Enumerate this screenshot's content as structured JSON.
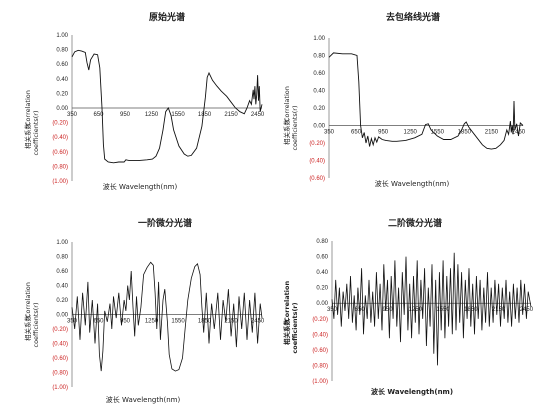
{
  "colors": {
    "positive_tick": "#222222",
    "negative_tick": "#cc2222",
    "line": "#111111",
    "axis": "#555555"
  },
  "chart_data": [
    {
      "type": "line",
      "title": "原始光谱",
      "xlabel": "波长 Wavelength(nm)",
      "ylabel_cn": "相关系数",
      "ylabel_en_1": "Correlation",
      "ylabel_en_2": "coefficients(r)",
      "ylim": [
        -1.0,
        1.0
      ],
      "yticks": [
        "1.00",
        "0.80",
        "0.60",
        "0.40",
        "0.20",
        "0.00",
        "(0.20)",
        "(0.40)",
        "(0.60)",
        "(0.80)",
        "(1.00)"
      ],
      "ytick_values": [
        1.0,
        0.8,
        0.6,
        0.4,
        0.2,
        0.0,
        -0.2,
        -0.4,
        -0.6,
        -0.8,
        -1.0
      ],
      "xlim": [
        350,
        2500
      ],
      "xticks": [
        "350",
        "650",
        "950",
        "1250",
        "1550",
        "1850",
        "2150",
        "2450"
      ],
      "xtick_values": [
        350,
        650,
        950,
        1250,
        1550,
        1850,
        2150,
        2450
      ],
      "points": [
        [
          350,
          0.7
        ],
        [
          380,
          0.77
        ],
        [
          420,
          0.79
        ],
        [
          460,
          0.78
        ],
        [
          500,
          0.76
        ],
        [
          520,
          0.62
        ],
        [
          540,
          0.52
        ],
        [
          560,
          0.66
        ],
        [
          600,
          0.74
        ],
        [
          640,
          0.73
        ],
        [
          665,
          0.55
        ],
        [
          690,
          0.0
        ],
        [
          705,
          -0.5
        ],
        [
          720,
          -0.7
        ],
        [
          760,
          -0.74
        ],
        [
          820,
          -0.75
        ],
        [
          880,
          -0.74
        ],
        [
          940,
          -0.74
        ],
        [
          960,
          -0.71
        ],
        [
          1000,
          -0.72
        ],
        [
          1100,
          -0.72
        ],
        [
          1200,
          -0.71
        ],
        [
          1260,
          -0.7
        ],
        [
          1300,
          -0.66
        ],
        [
          1340,
          -0.55
        ],
        [
          1380,
          -0.3
        ],
        [
          1410,
          -0.05
        ],
        [
          1440,
          0.0
        ],
        [
          1470,
          -0.1
        ],
        [
          1500,
          -0.3
        ],
        [
          1560,
          -0.52
        ],
        [
          1620,
          -0.63
        ],
        [
          1660,
          -0.66
        ],
        [
          1700,
          -0.65
        ],
        [
          1760,
          -0.55
        ],
        [
          1820,
          -0.25
        ],
        [
          1860,
          0.15
        ],
        [
          1880,
          0.42
        ],
        [
          1900,
          0.48
        ],
        [
          1940,
          0.38
        ],
        [
          1990,
          0.3
        ],
        [
          2040,
          0.23
        ],
        [
          2100,
          0.16
        ],
        [
          2150,
          0.08
        ],
        [
          2200,
          0.0
        ],
        [
          2250,
          -0.05
        ],
        [
          2300,
          -0.08
        ],
        [
          2330,
          0.0
        ],
        [
          2360,
          0.1
        ],
        [
          2380,
          0.05
        ],
        [
          2400,
          0.25
        ],
        [
          2410,
          0.12
        ],
        [
          2420,
          0.3
        ],
        [
          2430,
          0.05
        ],
        [
          2440,
          0.18
        ],
        [
          2450,
          0.45
        ],
        [
          2460,
          0.1
        ],
        [
          2470,
          0.3
        ],
        [
          2480,
          -0.05
        ],
        [
          2500,
          0.05
        ]
      ]
    },
    {
      "type": "line",
      "title": "去包络线光谱",
      "xlabel": "波长 Wavelength(nm)",
      "ylabel_cn": "相关系数",
      "ylabel_en_1": "Correlation",
      "ylabel_en_2": "coefficients(r)",
      "ylim": [
        -0.6,
        1.0
      ],
      "yticks": [
        "1.00",
        "0.80",
        "0.60",
        "0.40",
        "0.20",
        "0.00",
        "(0.20)",
        "(0.40)",
        "(0.60)"
      ],
      "ytick_values": [
        1.0,
        0.8,
        0.6,
        0.4,
        0.2,
        0.0,
        -0.2,
        -0.4,
        -0.6
      ],
      "xlim": [
        350,
        2500
      ],
      "xticks": [
        "350",
        "650",
        "950",
        "1250",
        "1550",
        "1850",
        "2150",
        "2450"
      ],
      "xtick_values": [
        350,
        650,
        950,
        1250,
        1550,
        1850,
        2150,
        2450
      ],
      "points": [
        [
          350,
          0.78
        ],
        [
          400,
          0.83
        ],
        [
          500,
          0.82
        ],
        [
          600,
          0.82
        ],
        [
          660,
          0.8
        ],
        [
          680,
          0.5
        ],
        [
          700,
          0.0
        ],
        [
          720,
          -0.14
        ],
        [
          740,
          -0.08
        ],
        [
          760,
          -0.2
        ],
        [
          780,
          -0.12
        ],
        [
          800,
          -0.24
        ],
        [
          820,
          -0.15
        ],
        [
          840,
          -0.22
        ],
        [
          860,
          -0.14
        ],
        [
          880,
          -0.19
        ],
        [
          900,
          -0.13
        ],
        [
          940,
          -0.16
        ],
        [
          980,
          -0.17
        ],
        [
          1050,
          -0.18
        ],
        [
          1100,
          -0.18
        ],
        [
          1200,
          -0.17
        ],
        [
          1300,
          -0.14
        ],
        [
          1380,
          -0.1
        ],
        [
          1420,
          0.01
        ],
        [
          1450,
          0.02
        ],
        [
          1480,
          -0.05
        ],
        [
          1550,
          -0.12
        ],
        [
          1620,
          -0.16
        ],
        [
          1700,
          -0.16
        ],
        [
          1780,
          -0.12
        ],
        [
          1820,
          -0.05
        ],
        [
          1850,
          0.02
        ],
        [
          1870,
          0.04
        ],
        [
          1900,
          -0.02
        ],
        [
          1960,
          -0.1
        ],
        [
          2050,
          -0.22
        ],
        [
          2100,
          -0.26
        ],
        [
          2150,
          -0.27
        ],
        [
          2200,
          -0.26
        ],
        [
          2250,
          -0.22
        ],
        [
          2290,
          -0.17
        ],
        [
          2320,
          -0.05
        ],
        [
          2340,
          -0.1
        ],
        [
          2360,
          0.05
        ],
        [
          2370,
          -0.08
        ],
        [
          2380,
          0.0
        ],
        [
          2390,
          -0.1
        ],
        [
          2400,
          0.28
        ],
        [
          2410,
          -0.05
        ],
        [
          2430,
          0.02
        ],
        [
          2450,
          -0.12
        ],
        [
          2470,
          0.03
        ],
        [
          2500,
          0.0
        ]
      ]
    },
    {
      "type": "line",
      "title": "一阶微分光谱",
      "xlabel": "波长 Wavelength(nm)",
      "ylabel_cn": "相关系数",
      "ylabel_en_1": "Correlation",
      "ylabel_en_2": "coefficients(r)",
      "ylim": [
        -1.0,
        1.0
      ],
      "yticks": [
        "1.00",
        "0.80",
        "0.60",
        "0.40",
        "0.20",
        "0.00",
        "(0.20)",
        "(0.40)",
        "(0.60)",
        "(0.80)",
        "(1.00)"
      ],
      "ytick_values": [
        1.0,
        0.8,
        0.6,
        0.4,
        0.2,
        0.0,
        -0.2,
        -0.4,
        -0.6,
        -0.8,
        -1.0
      ],
      "xlim": [
        350,
        2500
      ],
      "xticks": [
        "350",
        "650",
        "950",
        "1250",
        "1550",
        "1850",
        "2150",
        "2450"
      ],
      "xtick_values": [
        350,
        650,
        950,
        1250,
        1550,
        1850,
        2150,
        2450
      ],
      "points": [
        [
          350,
          0.1
        ],
        [
          380,
          -0.2
        ],
        [
          410,
          0.25
        ],
        [
          440,
          -0.35
        ],
        [
          470,
          0.3
        ],
        [
          500,
          -0.15
        ],
        [
          530,
          0.45
        ],
        [
          550,
          -0.25
        ],
        [
          580,
          0.2
        ],
        [
          610,
          -0.4
        ],
        [
          640,
          0.15
        ],
        [
          660,
          -0.55
        ],
        [
          680,
          -0.78
        ],
        [
          700,
          -0.5
        ],
        [
          720,
          0.05
        ],
        [
          750,
          -0.1
        ],
        [
          780,
          0.15
        ],
        [
          800,
          -0.2
        ],
        [
          820,
          0.25
        ],
        [
          850,
          -0.05
        ],
        [
          880,
          0.3
        ],
        [
          910,
          -0.15
        ],
        [
          940,
          0.2
        ],
        [
          960,
          0.05
        ],
        [
          980,
          0.4
        ],
        [
          1000,
          0.2
        ],
        [
          1020,
          0.6
        ],
        [
          1040,
          0.1
        ],
        [
          1060,
          -0.3
        ],
        [
          1080,
          0.25
        ],
        [
          1100,
          -0.15
        ],
        [
          1130,
          0.1
        ],
        [
          1160,
          0.55
        ],
        [
          1200,
          0.65
        ],
        [
          1240,
          0.72
        ],
        [
          1270,
          0.68
        ],
        [
          1290,
          0.3
        ],
        [
          1310,
          -0.2
        ],
        [
          1330,
          0.45
        ],
        [
          1350,
          -0.35
        ],
        [
          1380,
          0.2
        ],
        [
          1400,
          0.35
        ],
        [
          1430,
          -0.1
        ],
        [
          1450,
          -0.55
        ],
        [
          1480,
          -0.75
        ],
        [
          1520,
          -0.78
        ],
        [
          1560,
          -0.76
        ],
        [
          1600,
          -0.6
        ],
        [
          1630,
          -0.2
        ],
        [
          1660,
          0.2
        ],
        [
          1700,
          0.5
        ],
        [
          1740,
          0.66
        ],
        [
          1770,
          0.7
        ],
        [
          1800,
          0.55
        ],
        [
          1820,
          0.1
        ],
        [
          1840,
          -0.25
        ],
        [
          1870,
          0.3
        ],
        [
          1900,
          -0.4
        ],
        [
          1930,
          0.15
        ],
        [
          1960,
          -0.2
        ],
        [
          2000,
          0.3
        ],
        [
          2030,
          -0.35
        ],
        [
          2060,
          0.2
        ],
        [
          2090,
          -0.1
        ],
        [
          2120,
          0.35
        ],
        [
          2150,
          -0.3
        ],
        [
          2180,
          0.15
        ],
        [
          2210,
          -0.45
        ],
        [
          2240,
          0.25
        ],
        [
          2270,
          -0.2
        ],
        [
          2300,
          0.3
        ],
        [
          2330,
          -0.35
        ],
        [
          2360,
          0.2
        ],
        [
          2390,
          -0.25
        ],
        [
          2420,
          0.3
        ],
        [
          2450,
          -0.4
        ],
        [
          2480,
          0.15
        ],
        [
          2500,
          -0.05
        ]
      ]
    },
    {
      "type": "line",
      "title": "二阶微分光谱",
      "xlabel": "波长 Wavelength(nm)",
      "ylabel_cn": "相关系数",
      "ylabel_en_1": "Correlation",
      "ylabel_en_2": "coefficients(r)",
      "ylim": [
        -1.0,
        0.8
      ],
      "yticks": [
        "0.80",
        "0.60",
        "0.40",
        "0.20",
        "0.00",
        "(0.20)",
        "(0.40)",
        "(0.60)",
        "(0.80)",
        "(1.00)"
      ],
      "ytick_values": [
        0.8,
        0.6,
        0.4,
        0.2,
        0.0,
        -0.2,
        -0.4,
        -0.6,
        -0.8,
        -1.0
      ],
      "xlim": [
        350,
        2500
      ],
      "xticks": [
        "350",
        "650",
        "950",
        "1250",
        "1550",
        "1850",
        "2150",
        "2450"
      ],
      "xtick_values": [
        350,
        650,
        950,
        1250,
        1550,
        1850,
        2150,
        2450
      ],
      "points": [
        [
          350,
          0.05
        ],
        [
          370,
          -0.2
        ],
        [
          390,
          0.3
        ],
        [
          410,
          -0.15
        ],
        [
          430,
          0.2
        ],
        [
          450,
          -0.3
        ],
        [
          470,
          0.15
        ],
        [
          490,
          -0.1
        ],
        [
          510,
          0.25
        ],
        [
          530,
          -0.2
        ],
        [
          550,
          0.35
        ],
        [
          570,
          -0.25
        ],
        [
          590,
          0.1
        ],
        [
          610,
          -0.35
        ],
        [
          630,
          0.2
        ],
        [
          650,
          -0.15
        ],
        [
          670,
          0.45
        ],
        [
          690,
          -0.4
        ],
        [
          710,
          0.1
        ],
        [
          730,
          -0.2
        ],
        [
          750,
          0.3
        ],
        [
          770,
          -0.25
        ],
        [
          790,
          0.15
        ],
        [
          810,
          -0.3
        ],
        [
          830,
          0.4
        ],
        [
          850,
          -0.2
        ],
        [
          870,
          0.25
        ],
        [
          890,
          -0.35
        ],
        [
          910,
          0.5
        ],
        [
          930,
          -0.1
        ],
        [
          950,
          0.3
        ],
        [
          970,
          -0.45
        ],
        [
          990,
          0.35
        ],
        [
          1010,
          -0.2
        ],
        [
          1030,
          0.55
        ],
        [
          1050,
          -0.3
        ],
        [
          1070,
          0.2
        ],
        [
          1090,
          -0.5
        ],
        [
          1110,
          0.4
        ],
        [
          1130,
          -0.15
        ],
        [
          1150,
          0.6
        ],
        [
          1170,
          -0.35
        ],
        [
          1190,
          0.25
        ],
        [
          1210,
          -0.45
        ],
        [
          1230,
          0.35
        ],
        [
          1250,
          -0.25
        ],
        [
          1270,
          0.55
        ],
        [
          1290,
          -0.4
        ],
        [
          1310,
          0.3
        ],
        [
          1330,
          -0.2
        ],
        [
          1350,
          0.45
        ],
        [
          1370,
          -0.55
        ],
        [
          1390,
          0.2
        ],
        [
          1410,
          -0.3
        ],
        [
          1430,
          0.5
        ],
        [
          1450,
          -0.65
        ],
        [
          1470,
          0.3
        ],
        [
          1490,
          -0.8
        ],
        [
          1510,
          0.4
        ],
        [
          1530,
          -0.35
        ],
        [
          1550,
          0.55
        ],
        [
          1570,
          -0.45
        ],
        [
          1590,
          0.35
        ],
        [
          1610,
          -0.3
        ],
        [
          1630,
          0.45
        ],
        [
          1650,
          -0.4
        ],
        [
          1670,
          0.65
        ],
        [
          1690,
          -0.35
        ],
        [
          1710,
          0.5
        ],
        [
          1730,
          -0.25
        ],
        [
          1750,
          0.4
        ],
        [
          1770,
          -0.45
        ],
        [
          1790,
          0.3
        ],
        [
          1810,
          -0.2
        ],
        [
          1830,
          0.45
        ],
        [
          1850,
          -0.3
        ],
        [
          1870,
          0.25
        ],
        [
          1890,
          -0.4
        ],
        [
          1910,
          0.35
        ],
        [
          1930,
          -0.2
        ],
        [
          1950,
          0.3
        ],
        [
          1970,
          -0.35
        ],
        [
          1990,
          0.2
        ],
        [
          2010,
          -0.25
        ],
        [
          2030,
          0.4
        ],
        [
          2050,
          -0.3
        ],
        [
          2070,
          0.2
        ],
        [
          2090,
          -0.25
        ],
        [
          2110,
          0.3
        ],
        [
          2130,
          -0.15
        ],
        [
          2150,
          0.25
        ],
        [
          2170,
          -0.3
        ],
        [
          2190,
          0.2
        ],
        [
          2210,
          -0.2
        ],
        [
          2230,
          0.3
        ],
        [
          2250,
          -0.25
        ],
        [
          2270,
          0.15
        ],
        [
          2290,
          -0.3
        ],
        [
          2310,
          0.25
        ],
        [
          2330,
          -0.2
        ],
        [
          2350,
          0.2
        ],
        [
          2370,
          -0.25
        ],
        [
          2390,
          0.3
        ],
        [
          2410,
          -0.15
        ],
        [
          2430,
          0.25
        ],
        [
          2450,
          -0.2
        ],
        [
          2470,
          0.15
        ],
        [
          2500,
          -0.05
        ]
      ]
    }
  ]
}
